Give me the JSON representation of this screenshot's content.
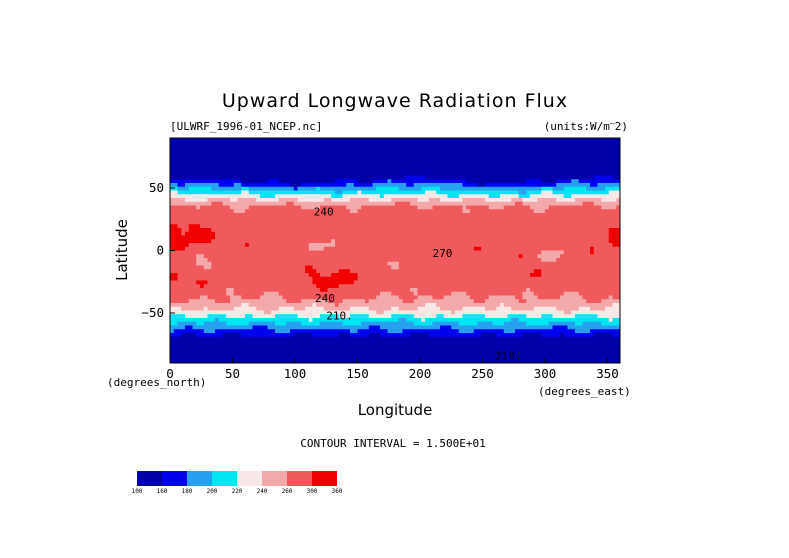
{
  "chart_data": {
    "type": "heatmap",
    "title": "Upward Longwave Radiation Flux",
    "file_label": "[ULWRF_1996-01_NCEP.nc]",
    "units_label": "(units:W/m^2)",
    "xlabel": "Longitude",
    "ylabel": "Latitude",
    "x_unit_label": "(degrees_east)",
    "y_unit_label": "(degrees_north)",
    "xlim": [
      0,
      360
    ],
    "ylim": [
      -90,
      90
    ],
    "x_ticks": [
      "0",
      "50",
      "100",
      "150",
      "200",
      "250",
      "300",
      "350"
    ],
    "x_tick_values": [
      0,
      50,
      100,
      150,
      200,
      250,
      300,
      350
    ],
    "y_ticks": [
      "50",
      "0",
      "−50"
    ],
    "y_tick_values": [
      50,
      0,
      -50
    ],
    "contour_interval_text": "CONTOUR INTERVAL = 1.500E+01",
    "colorbar": {
      "labels": [
        "100",
        "160",
        "180",
        "200",
        "220",
        "240",
        "260",
        "300",
        "360"
      ],
      "colors": [
        "#0000a8",
        "#0000f0",
        "#28a0f0",
        "#00e6f0",
        "#f7e7e7",
        "#f3a9aa",
        "#f05a5c",
        "#f00000"
      ]
    },
    "contour_labels": [
      {
        "text": "240",
        "lon": 116,
        "lat": -41
      },
      {
        "text": "210.",
        "lon": 125,
        "lat": -55
      },
      {
        "text": "210.",
        "lon": 260,
        "lat": -87
      },
      {
        "text": "240",
        "lon": 115,
        "lat": 28
      },
      {
        "text": "270",
        "lon": 210,
        "lat": -5
      }
    ],
    "grid": false,
    "legend": "colorbar bottom-left",
    "field_description": "Upward longwave flux (W/m^2), January 1996 NCEP: low values (100-200) near poles and over high-latitude land/ice, highest values (260-360) over tropical/subtropical land (Africa, Australia, South America) and warm ocean."
  }
}
